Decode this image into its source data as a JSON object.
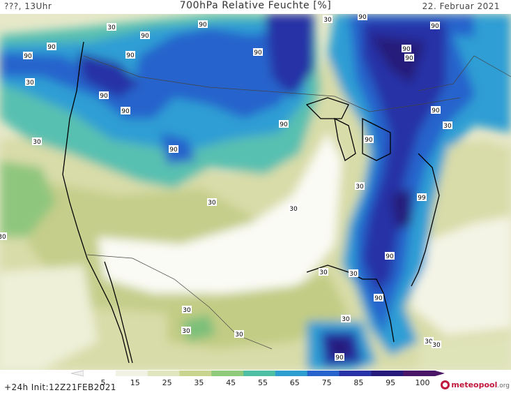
{
  "header": {
    "left": "???, 13Uhr",
    "title": "700hPa Relative Feuchte [%]",
    "date": "22. Februar 2021"
  },
  "footer": {
    "init": "+24h Init:12Z21FEB2021",
    "logo_main": "meteopool",
    "logo_suffix": ".org"
  },
  "colorbar": {
    "ticks": [
      "5",
      "15",
      "25",
      "35",
      "45",
      "55",
      "65",
      "75",
      "85",
      "95",
      "100"
    ],
    "colors": [
      "#ffffff",
      "#f2f2e4",
      "#e2e6c0",
      "#c9d48f",
      "#8fca7a",
      "#4fbfa3",
      "#2e9ed0",
      "#2763cc",
      "#2733a6",
      "#261a7a",
      "#4a1768"
    ]
  },
  "contour_labels": {
    "row1": [
      "30",
      "90",
      "90",
      "90",
      "30",
      "90",
      "90"
    ],
    "row2": [
      "90",
      "90",
      "90",
      "90",
      "90",
      "90",
      "90",
      "90"
    ],
    "row3": [
      "30",
      "90",
      "30",
      "90",
      "90",
      "99",
      "30"
    ],
    "row4": [
      "30",
      "30",
      "30",
      "30",
      "30",
      "30",
      "90",
      "90"
    ],
    "row5": [
      "30",
      "30",
      "30",
      "90",
      "30",
      "30",
      "30"
    ]
  }
}
